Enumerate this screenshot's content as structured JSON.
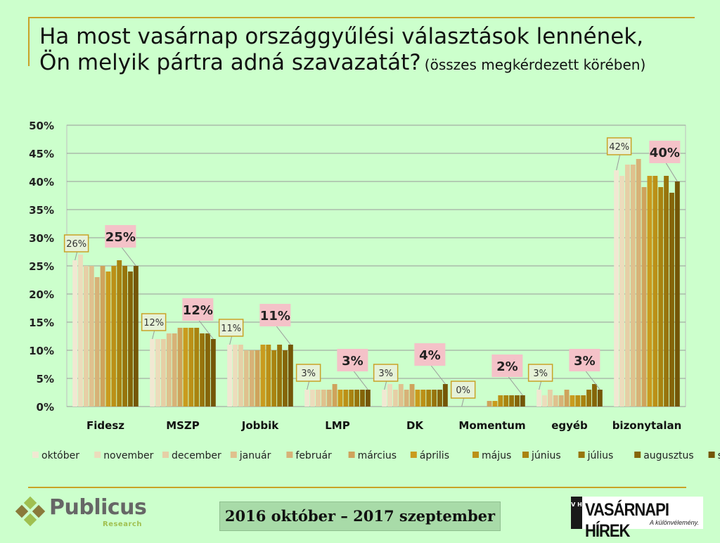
{
  "title": {
    "line1": "Ha most vasárnap országgyűlési választások lennének,",
    "line2": "Ön melyik pártra adná szavazatát?",
    "line2_small": "(összes megkérdezett körében)"
  },
  "period_label": "2016 október – 2017 szeptember",
  "logos": {
    "publicus_name": "Publicus",
    "publicus_sub": "Research",
    "vh_box": "V H",
    "vh_name": "VASÁRNAPI HÍREK",
    "vh_tagline": "A különvélemény."
  },
  "colors": {
    "background": "#ccffcc",
    "accent_gold": "#c9a227",
    "highlight_label_bg": "#f4c2c8",
    "first_label_bg": "#e6f2d8"
  },
  "chart_data": {
    "type": "bar",
    "categories": [
      "Fidesz",
      "MSZP",
      "Jobbik",
      "LMP",
      "DK",
      "Momentum",
      "egyéb",
      "bizonytalan"
    ],
    "ylim": [
      0,
      50
    ],
    "ytick_step": 5,
    "ytick_format": "{v}%",
    "grid": true,
    "legend_position": "bottom",
    "series": [
      {
        "name": "október",
        "color": "#f1e8d2",
        "values": [
          26,
          12,
          11,
          3,
          3,
          0,
          3,
          42
        ]
      },
      {
        "name": "november",
        "color": "#ecdcbc",
        "values": [
          27,
          12,
          11,
          3,
          4,
          0,
          2,
          41
        ]
      },
      {
        "name": "december",
        "color": "#e6cfa6",
        "values": [
          25,
          12,
          11,
          3,
          3,
          0,
          3,
          43
        ]
      },
      {
        "name": "január",
        "color": "#dfc18e",
        "values": [
          25,
          13,
          10,
          3,
          4,
          0,
          2,
          43
        ]
      },
      {
        "name": "február",
        "color": "#d7b277",
        "values": [
          23,
          13,
          10,
          3,
          3,
          0,
          2,
          44
        ]
      },
      {
        "name": "március",
        "color": "#cfa35c",
        "values": [
          25,
          14,
          10,
          4,
          4,
          1,
          3,
          39
        ]
      },
      {
        "name": "április",
        "color": "#c99b1e",
        "values": [
          24,
          14,
          11,
          3,
          3,
          1,
          2,
          41
        ]
      },
      {
        "name": "május",
        "color": "#bb9017",
        "values": [
          25,
          14,
          11,
          3,
          3,
          2,
          2,
          41
        ]
      },
      {
        "name": "június",
        "color": "#a98310",
        "values": [
          26,
          14,
          10,
          3,
          3,
          2,
          2,
          39
        ]
      },
      {
        "name": "július",
        "color": "#97740c",
        "values": [
          25,
          13,
          11,
          3,
          3,
          2,
          3,
          41
        ]
      },
      {
        "name": "augusztus",
        "color": "#856509",
        "values": [
          24,
          13,
          10,
          3,
          3,
          2,
          4,
          38
        ]
      },
      {
        "name": "szeptember",
        "color": "#745607",
        "values": [
          25,
          12,
          11,
          3,
          4,
          2,
          3,
          40
        ]
      }
    ],
    "first_labels": [
      "26%",
      "12%",
      "11%",
      "3%",
      "3%",
      "0%",
      "3%",
      "42%"
    ],
    "last_labels": [
      "25%",
      "12%",
      "11%",
      "3%",
      "4%",
      "2%",
      "3%",
      "40%"
    ]
  }
}
